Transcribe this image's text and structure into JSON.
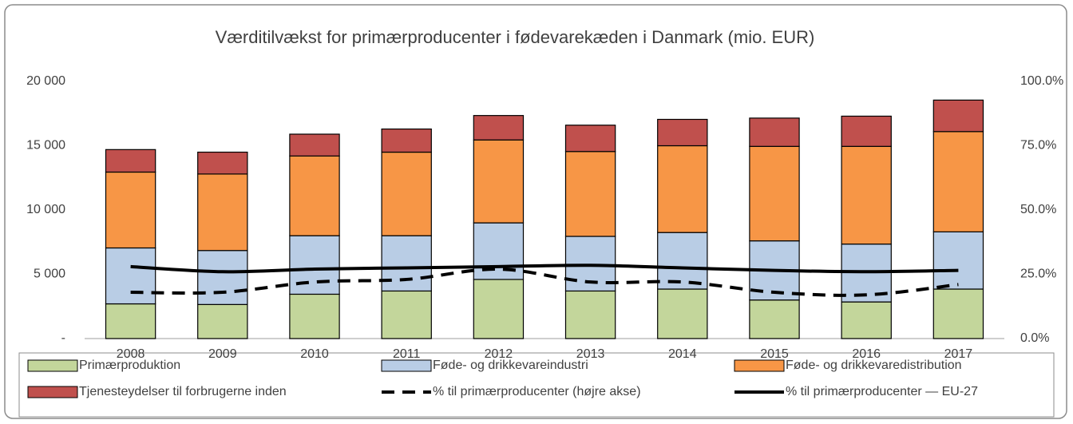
{
  "chart_data": {
    "type": "bar",
    "stacked": true,
    "title": "Værditilvækst for primærproducenter i fødevarekæden i Danmark (mio. EUR)",
    "categories": [
      "2008",
      "2009",
      "2010",
      "2011",
      "2012",
      "2013",
      "2014",
      "2015",
      "2016",
      "2017"
    ],
    "series": [
      {
        "name": "Primærproduktion",
        "type": "bar",
        "color": "#c3d69b",
        "values": [
          2700,
          2650,
          3450,
          3700,
          4600,
          3700,
          3850,
          3000,
          2850,
          3850
        ]
      },
      {
        "name": "Føde- og drikkevareindustri",
        "type": "bar",
        "color": "#b9cde5",
        "values": [
          4350,
          4200,
          4550,
          4300,
          4400,
          4250,
          4400,
          4600,
          4500,
          4450
        ]
      },
      {
        "name": "Føde- og drikkevaredistribution",
        "type": "bar",
        "color": "#f79646",
        "values": [
          5900,
          5950,
          6200,
          6500,
          6450,
          6600,
          6750,
          7350,
          7600,
          7800
        ]
      },
      {
        "name": "Tjenesteydelser til forbrugerne inden",
        "type": "bar",
        "color": "#c0504d",
        "values": [
          1750,
          1700,
          1700,
          1800,
          1900,
          2050,
          2050,
          2200,
          2350,
          2450
        ]
      },
      {
        "name": "% til primærproducenter (højre akse)",
        "type": "line",
        "axis": "y2",
        "dashed": true,
        "color": "#000000",
        "values": [
          18,
          18,
          22,
          23,
          27,
          22,
          22,
          18,
          17,
          21
        ]
      },
      {
        "name": "% til primærproducenter — EU-27",
        "type": "line",
        "axis": "y2",
        "dashed": false,
        "color": "#000000",
        "values": [
          28,
          26,
          27,
          27.5,
          28,
          28.5,
          27.5,
          26.5,
          26,
          26.5
        ]
      }
    ],
    "ylim": [
      0,
      20000
    ],
    "yticks": [
      {
        "value": 0,
        "label": "-"
      },
      {
        "value": 5000,
        "label": "5 000"
      },
      {
        "value": 10000,
        "label": "10 000"
      },
      {
        "value": 15000,
        "label": "15 000"
      },
      {
        "value": 20000,
        "label": "20 000"
      }
    ],
    "y2lim": [
      0,
      100
    ],
    "y2ticks": [
      {
        "value": 0,
        "label": "0.0%"
      },
      {
        "value": 25,
        "label": "25.0%"
      },
      {
        "value": 50,
        "label": "50.0%"
      },
      {
        "value": 75,
        "label": "75.0%"
      },
      {
        "value": 100,
        "label": "100.0%"
      }
    ],
    "grid": false,
    "legend": "bottom"
  }
}
